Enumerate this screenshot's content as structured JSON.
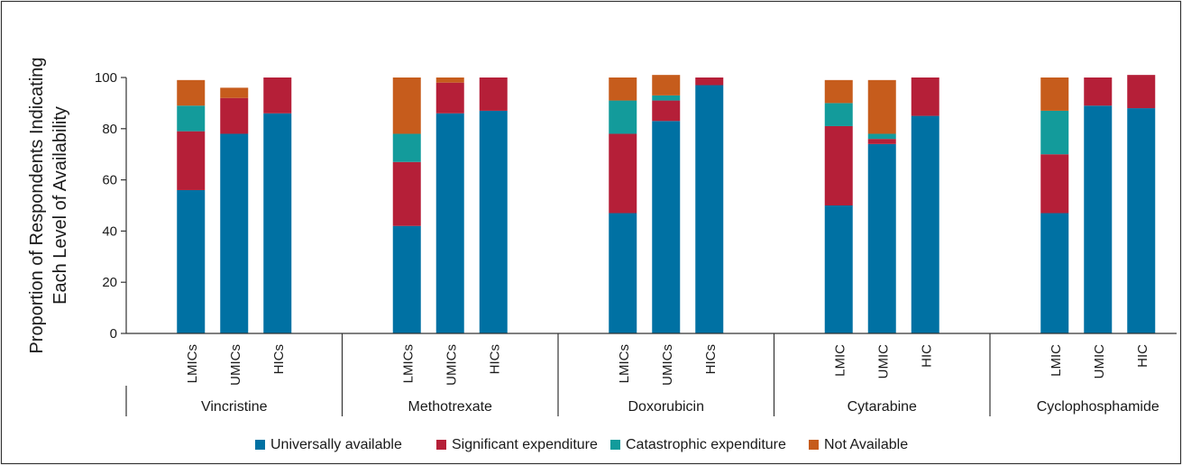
{
  "chart_data": {
    "type": "bar",
    "stacked": true,
    "ylabel_lines": [
      "Proportion of Respondents Indicating",
      "Each Level of Availability"
    ],
    "ylim": [
      0,
      100
    ],
    "yticks": [
      "0",
      "20",
      "40",
      "60",
      "80",
      "100"
    ],
    "ytick_values": [
      0,
      20,
      40,
      60,
      80,
      100
    ],
    "grid": false,
    "legend_position": "bottom",
    "groups": [
      {
        "name": "Vincristine",
        "categories": [
          "LMICs",
          "UMICs",
          "HICs"
        ]
      },
      {
        "name": "Methotrexate",
        "categories": [
          "LMICs",
          "UMICs",
          "HICs"
        ]
      },
      {
        "name": "Doxorubicin",
        "categories": [
          "LMICs",
          "UMICs",
          "HICs"
        ]
      },
      {
        "name": "Cytarabine",
        "categories": [
          "LMIC",
          "UMIC",
          "HIC"
        ]
      },
      {
        "name": "Cyclophosphamide",
        "categories": [
          "LMIC",
          "UMIC",
          "HIC"
        ]
      }
    ],
    "series": [
      {
        "name": "Universally available",
        "color": "#0071a3",
        "values": [
          56,
          78,
          86,
          42,
          86,
          87,
          47,
          83,
          97,
          50,
          74,
          85,
          47,
          89,
          88
        ]
      },
      {
        "name": "Significant expenditure",
        "color": "#b51f38",
        "values": [
          23,
          14,
          14,
          25,
          12,
          13,
          31,
          8,
          3,
          31,
          2,
          15,
          23,
          11,
          13
        ]
      },
      {
        "name": "Catastrophic expenditure",
        "color": "#139b9b",
        "values": [
          10,
          0,
          0,
          11,
          0,
          0,
          13,
          2,
          0,
          9,
          2,
          0,
          17,
          0,
          0
        ]
      },
      {
        "name": "Not Available",
        "color": "#c65c1c",
        "values": [
          10,
          4,
          0,
          22,
          2,
          0,
          9,
          8,
          0,
          9,
          21,
          0,
          13,
          0,
          0
        ]
      }
    ]
  }
}
